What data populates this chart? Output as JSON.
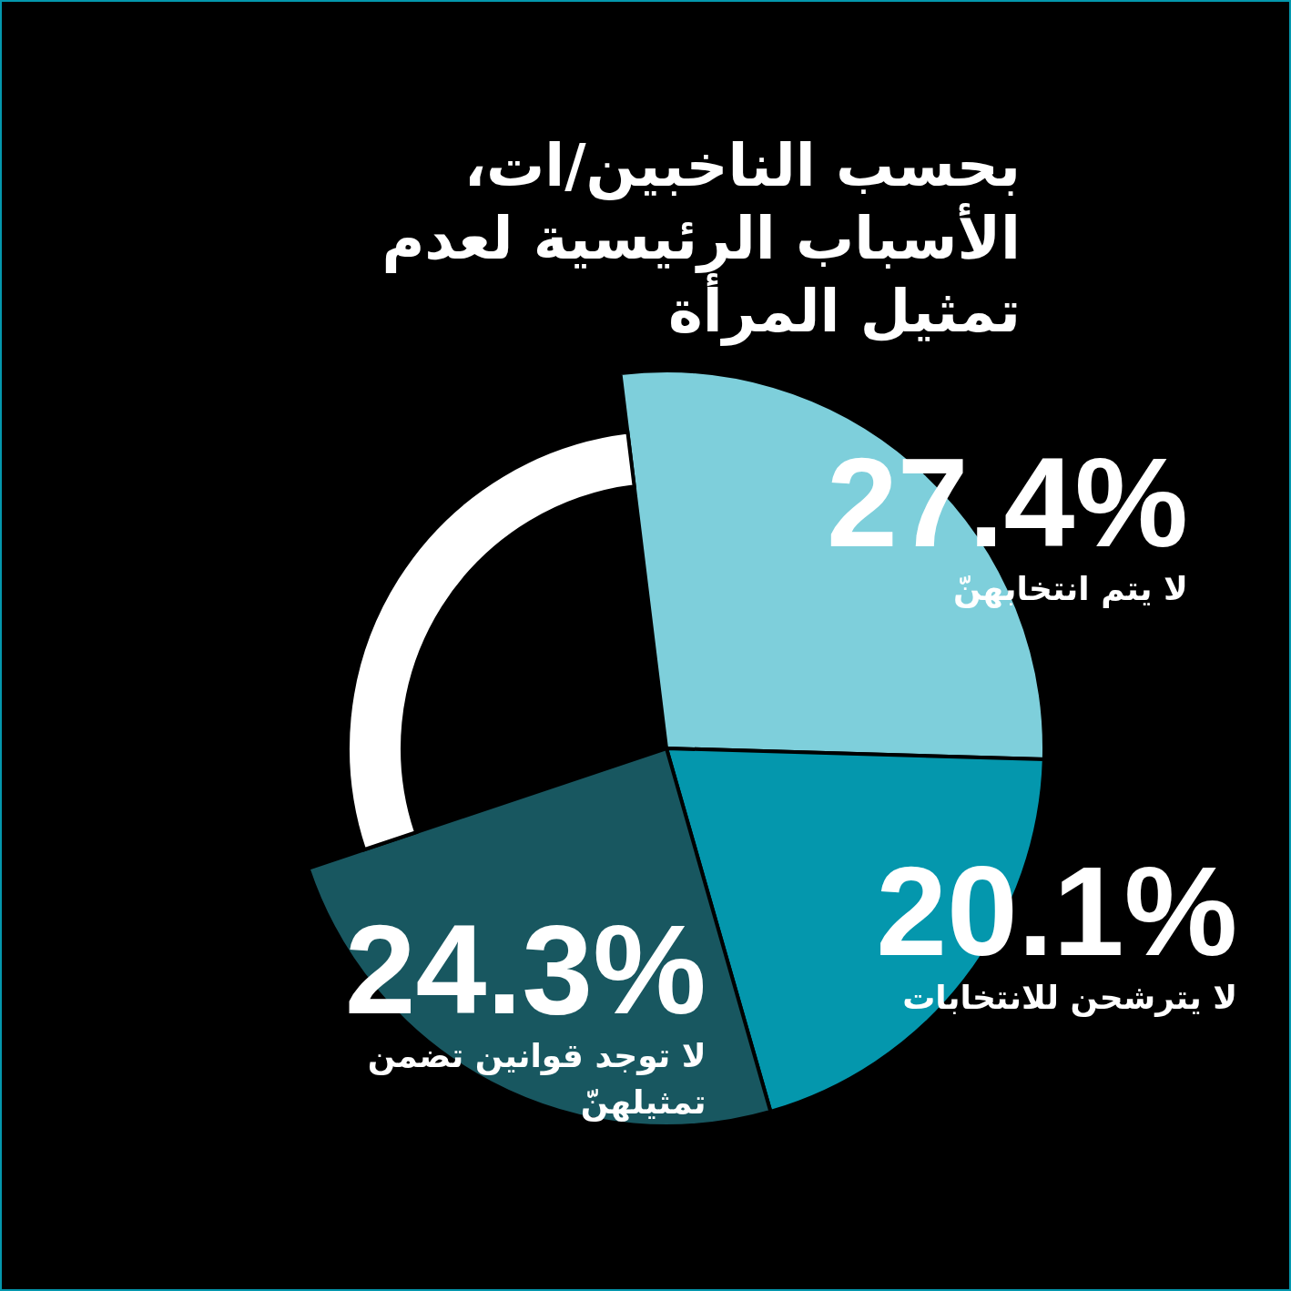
{
  "chart_data": {
    "type": "pie",
    "title": "بحسب الناخبين/ات، الأسباب الرئيسية لعدم تمثيل المرأة",
    "categories": [
      "لا يتم انتخابهنّ",
      "لا يترشحن للانتخابات",
      "لا توجد قوانين تضمن تمثيلهنّ",
      null
    ],
    "values": [
      27.4,
      20.1,
      24.3,
      28.2
    ],
    "value_labels": [
      "27.4%",
      "20.1%",
      "24.3%",
      null
    ],
    "colors": [
      "#7ecfdb",
      "#0497ad",
      "#185760",
      "#ffffff"
    ],
    "legend": false
  }
}
